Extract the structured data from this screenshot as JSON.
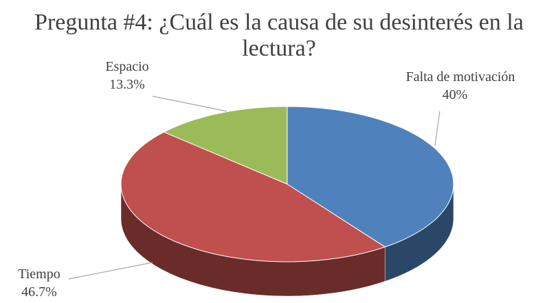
{
  "chart_data": {
    "type": "pie",
    "title": "Pregunta #4: ¿Cuál es la causa de su desinterés en la lectura?",
    "categories": [
      "Falta de motivación",
      "Tiempo",
      "Espacio"
    ],
    "values": [
      40,
      46.7,
      13.3
    ],
    "value_labels": [
      "40%",
      "46.7%",
      "13.3%"
    ],
    "colors": [
      "#4f81bd",
      "#c0504d",
      "#9bbb59"
    ]
  }
}
